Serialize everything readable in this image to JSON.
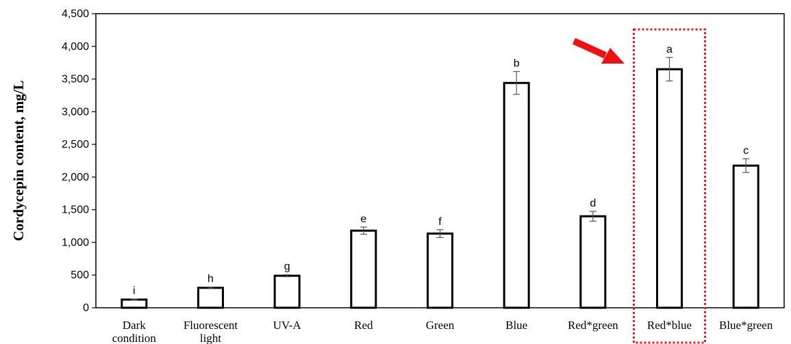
{
  "chart_data": {
    "type": "bar",
    "title": "",
    "xlabel": "",
    "ylabel": "Cordycepin content,  mg/L",
    "ylim": [
      0,
      4500
    ],
    "yticks": [
      0,
      500,
      1000,
      1500,
      2000,
      2500,
      3000,
      3500,
      4000,
      4500
    ],
    "ytick_labels": [
      "0",
      "500",
      "1,000",
      "1,500",
      "2,000",
      "2,500",
      "3,000",
      "3,500",
      "4,000",
      "4,500"
    ],
    "grid": false,
    "categories": [
      [
        "Dark",
        "condition"
      ],
      [
        "Fluorescent",
        "light"
      ],
      [
        "UV-A"
      ],
      [
        "Red"
      ],
      [
        "Green"
      ],
      [
        "Blue"
      ],
      [
        "Red*green"
      ],
      [
        "Red*blue"
      ],
      [
        "Blue*green"
      ]
    ],
    "values": [
      125,
      305,
      490,
      1180,
      1135,
      3440,
      1400,
      3650,
      2175
    ],
    "errors": [
      10,
      12,
      15,
      55,
      60,
      175,
      75,
      180,
      105
    ],
    "significance_letters": [
      "i",
      "h",
      "g",
      "e",
      "f",
      "b",
      "d",
      "a",
      "c"
    ],
    "colors": {
      "bar_fill": "#ffffff",
      "bar_stroke": "#000000",
      "highlight_box": "#e02020",
      "arrow": "#ee1111"
    },
    "annotations": {
      "highlighted_category_index": 7,
      "arrow_icon": "red-arrow-icon"
    }
  }
}
